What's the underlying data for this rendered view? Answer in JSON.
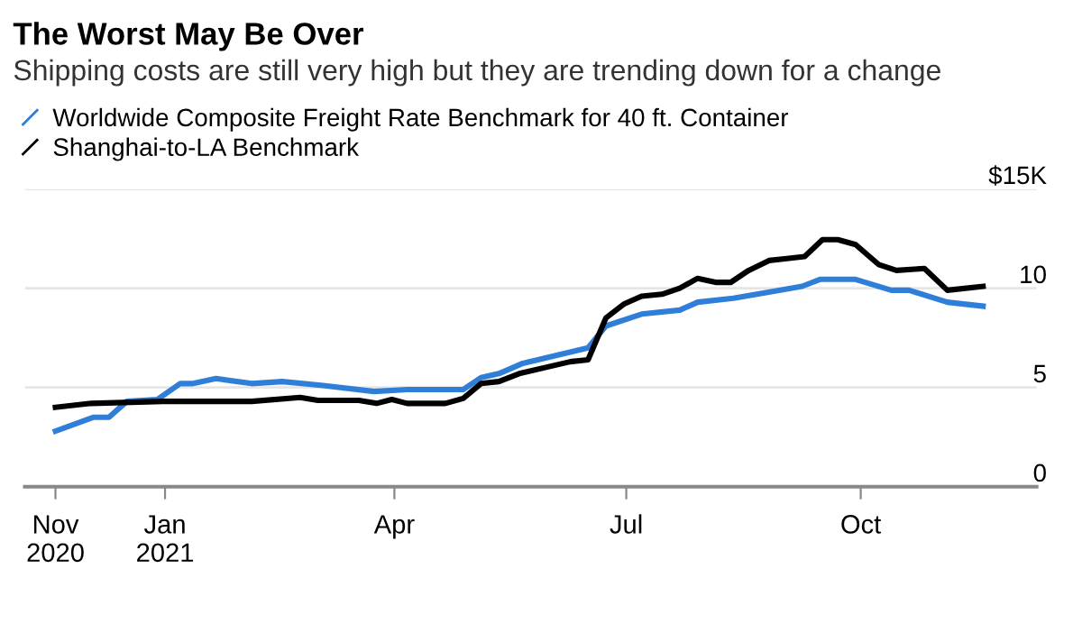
{
  "chart_data": {
    "type": "line",
    "title": "The Worst May Be Over",
    "subtitle": "Shipping costs are still very high but they are trending down for a change",
    "series": [
      {
        "name": "Worldwide Composite Freight Rate Benchmark for 40 ft. Container",
        "color": "#2f7fd8",
        "x": [
          "2020-11-19",
          "2020-12-04",
          "2020-12-10",
          "2020-12-17",
          "2020-12-29",
          "2021-01-07",
          "2021-01-12",
          "2021-01-21",
          "2021-02-04",
          "2021-02-16",
          "2021-03-04",
          "2021-03-24",
          "2021-04-06",
          "2021-04-28",
          "2021-05-05",
          "2021-05-12",
          "2021-05-21",
          "2021-06-16",
          "2021-06-23",
          "2021-07-07",
          "2021-07-22",
          "2021-07-29",
          "2021-08-12",
          "2021-08-30",
          "2021-09-08",
          "2021-09-15",
          "2021-09-29",
          "2021-10-13",
          "2021-10-20",
          "2021-11-04",
          "2021-11-18"
        ],
        "values": [
          2.8,
          3.5,
          3.5,
          4.3,
          4.4,
          5.2,
          5.2,
          5.45,
          5.2,
          5.3,
          5.1,
          4.8,
          4.9,
          4.9,
          5.5,
          5.7,
          6.2,
          7.0,
          8.1,
          8.7,
          8.9,
          9.3,
          9.5,
          9.9,
          10.1,
          10.45,
          10.45,
          9.9,
          9.9,
          9.3,
          9.1
        ]
      },
      {
        "name": "Shanghai-to-LA Benchmark",
        "color": "#000000",
        "x": [
          "2020-11-19",
          "2020-12-03",
          "2020-12-31",
          "2021-02-04",
          "2021-02-23",
          "2021-03-02",
          "2021-03-18",
          "2021-03-25",
          "2021-03-31",
          "2021-04-06",
          "2021-04-21",
          "2021-04-28",
          "2021-05-05",
          "2021-05-12",
          "2021-05-20",
          "2021-06-09",
          "2021-06-16",
          "2021-06-23",
          "2021-06-30",
          "2021-07-07",
          "2021-07-15",
          "2021-07-22",
          "2021-07-29",
          "2021-08-05",
          "2021-08-11",
          "2021-08-18",
          "2021-08-26",
          "2021-09-02",
          "2021-09-09",
          "2021-09-16",
          "2021-09-22",
          "2021-09-29",
          "2021-10-08",
          "2021-10-15",
          "2021-10-26",
          "2021-11-04",
          "2021-11-18"
        ],
        "values": [
          4.0,
          4.2,
          4.3,
          4.3,
          4.5,
          4.35,
          4.35,
          4.2,
          4.4,
          4.2,
          4.2,
          4.45,
          5.2,
          5.3,
          5.7,
          6.3,
          6.4,
          8.5,
          9.2,
          9.6,
          9.7,
          10.0,
          10.5,
          10.3,
          10.3,
          10.9,
          11.4,
          11.5,
          11.6,
          12.45,
          12.45,
          12.2,
          11.2,
          10.9,
          11.0,
          9.9,
          10.1
        ]
      }
    ],
    "xlim": [
      "2020-11-07",
      "2021-12-09"
    ],
    "xticks": [
      {
        "value": "2020-11-19",
        "label": "Nov\n2020"
      },
      {
        "value": "2021-01-01",
        "label": "Jan\n2021"
      },
      {
        "value": "2021-04-01",
        "label": "Apr"
      },
      {
        "value": "2021-07-01",
        "label": "Jul"
      },
      {
        "value": "2021-10-01",
        "label": "Oct"
      }
    ],
    "ylim": [
      0,
      15
    ],
    "yticks": [
      0,
      5,
      10,
      {
        "value": 15,
        "label": "$15K"
      }
    ],
    "grid": "y",
    "legend": "top left",
    "marker": "none",
    "line_style": "solid"
  }
}
